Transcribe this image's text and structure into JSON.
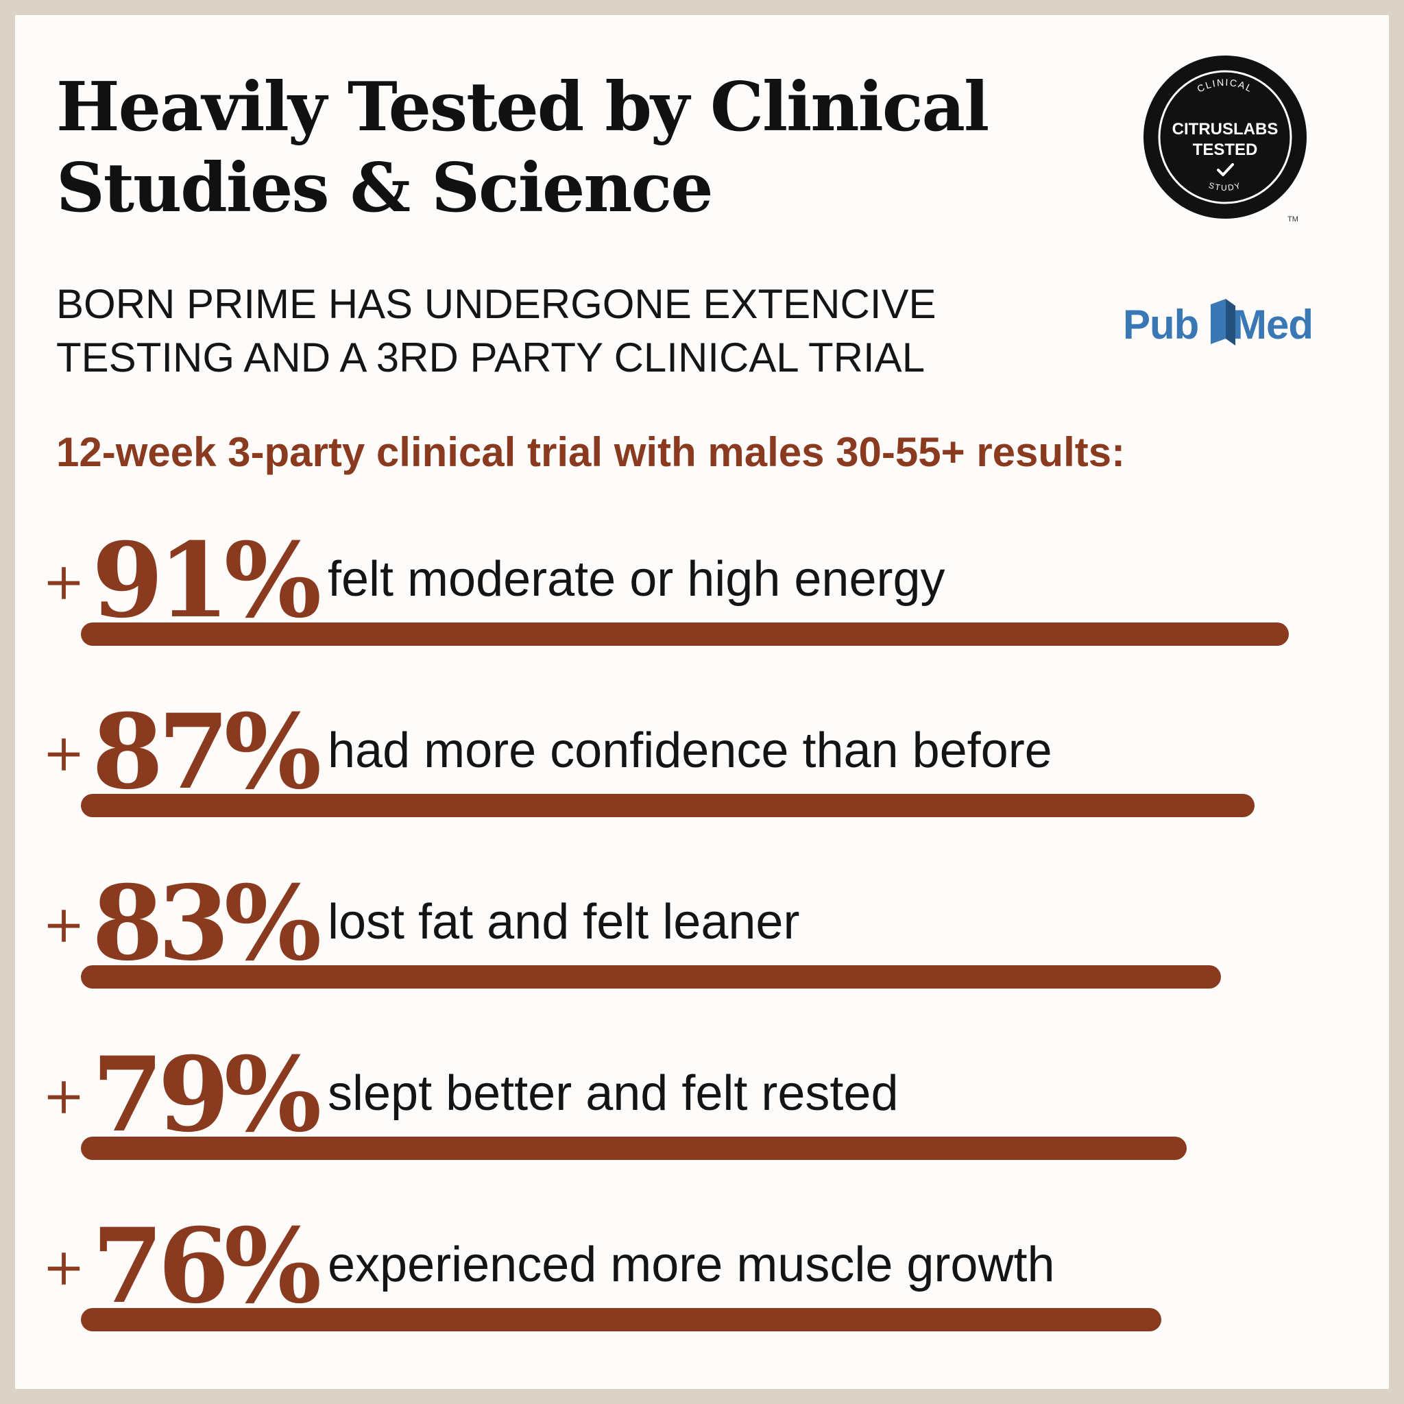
{
  "title": {
    "line1": "Heavily Tested by Clinical",
    "line2": "Studies & Science"
  },
  "subtitle": {
    "line1": "BORN PRIME HAS UNDERGONE EXTENCIVE",
    "line2": "TESTING AND A 3RD PARTY CLINICAL TRIAL"
  },
  "badge": {
    "top_text": "CLINICAL",
    "line1": "CITRUSLABS",
    "line2": "TESTED",
    "bottom_text": "STUDY",
    "trademark": "TM",
    "icon": "check-icon"
  },
  "pubmed_logo": "PubMed",
  "trial_heading": "12-week 3-party clinical trial with males 30-55+ results:",
  "stats": [
    {
      "plus": "+",
      "value": "91%",
      "description": "felt moderate or high energy",
      "percent": 91
    },
    {
      "plus": "+",
      "value": "87%",
      "description": "had more confidence than before",
      "percent": 87
    },
    {
      "plus": "+",
      "value": "83%",
      "description": "lost fat and felt leaner",
      "percent": 83
    },
    {
      "plus": "+",
      "value": "79%",
      "description": "slept better and felt rested",
      "percent": 79
    },
    {
      "plus": "+",
      "value": "76%",
      "description": "experienced more muscle growth",
      "percent": 76
    }
  ],
  "colors": {
    "accent": "#8a3b1f",
    "text": "#111111",
    "background": "#fdfcfa",
    "frame": "#d9d2c5",
    "pubmed_blue": "#3a78b5"
  }
}
